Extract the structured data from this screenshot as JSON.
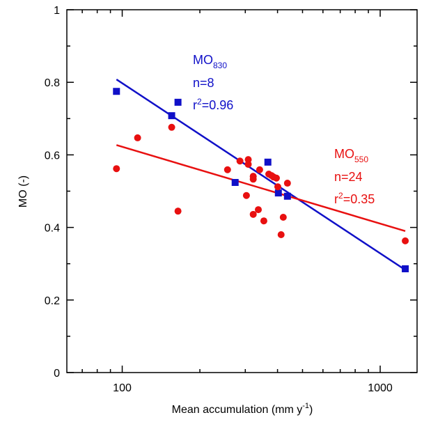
{
  "chart_data": {
    "type": "scatter",
    "x_label": {
      "main": "Mean accumulation (mm y",
      "sup": "-1",
      "end": ")"
    },
    "y_label": "MO (-)",
    "log_x": true,
    "xlim": [
      61,
      1390
    ],
    "ylim": [
      0,
      1
    ],
    "xticks": [
      100,
      1000
    ],
    "xminor_ticks": [
      70,
      80,
      90,
      200,
      300,
      400,
      500,
      600,
      700,
      800,
      900
    ],
    "yticks": [
      0,
      0.2,
      0.4,
      0.6,
      0.8,
      1
    ],
    "yminor_ticks": [
      0.1,
      0.3,
      0.5,
      0.7,
      0.9
    ],
    "series": [
      {
        "marker": "square",
        "color": "#1010c8",
        "x": [
          95,
          155.5,
          164.5,
          274,
          367,
          403,
          437,
          1251
        ],
        "values": [
          0.775,
          0.708,
          0.745,
          0.524,
          0.58,
          0.495,
          0.486,
          0.286
        ],
        "fit_x": [
          95,
          1251
        ],
        "fit_y": [
          0.808,
          0.283
        ],
        "annotation": {
          "name": "MO",
          "sub": "830",
          "n": "n=8",
          "r": "r",
          "sup": "2",
          "r2": "=0.96"
        }
      },
      {
        "marker": "circle",
        "color": "#e81010",
        "x": [
          95,
          114.7,
          155.5,
          164.5,
          256,
          286,
          308,
          308,
          303,
          322,
          322,
          337,
          341,
          354,
          370,
          379,
          386,
          396,
          401,
          413,
          421,
          437,
          1251,
          322
        ],
        "values": [
          0.562,
          0.647,
          0.676,
          0.445,
          0.559,
          0.583,
          0.587,
          0.574,
          0.488,
          0.541,
          0.436,
          0.449,
          0.559,
          0.418,
          0.547,
          0.543,
          0.539,
          0.536,
          0.512,
          0.38,
          0.428,
          0.522,
          0.363,
          0.533
        ],
        "fit_x": [
          95,
          1251
        ],
        "fit_y": [
          0.627,
          0.39
        ],
        "annotation": {
          "name": "MO",
          "sub": "550",
          "n": "n=24",
          "r": "r",
          "sup": "2",
          "r2": "=0.35"
        }
      }
    ]
  }
}
